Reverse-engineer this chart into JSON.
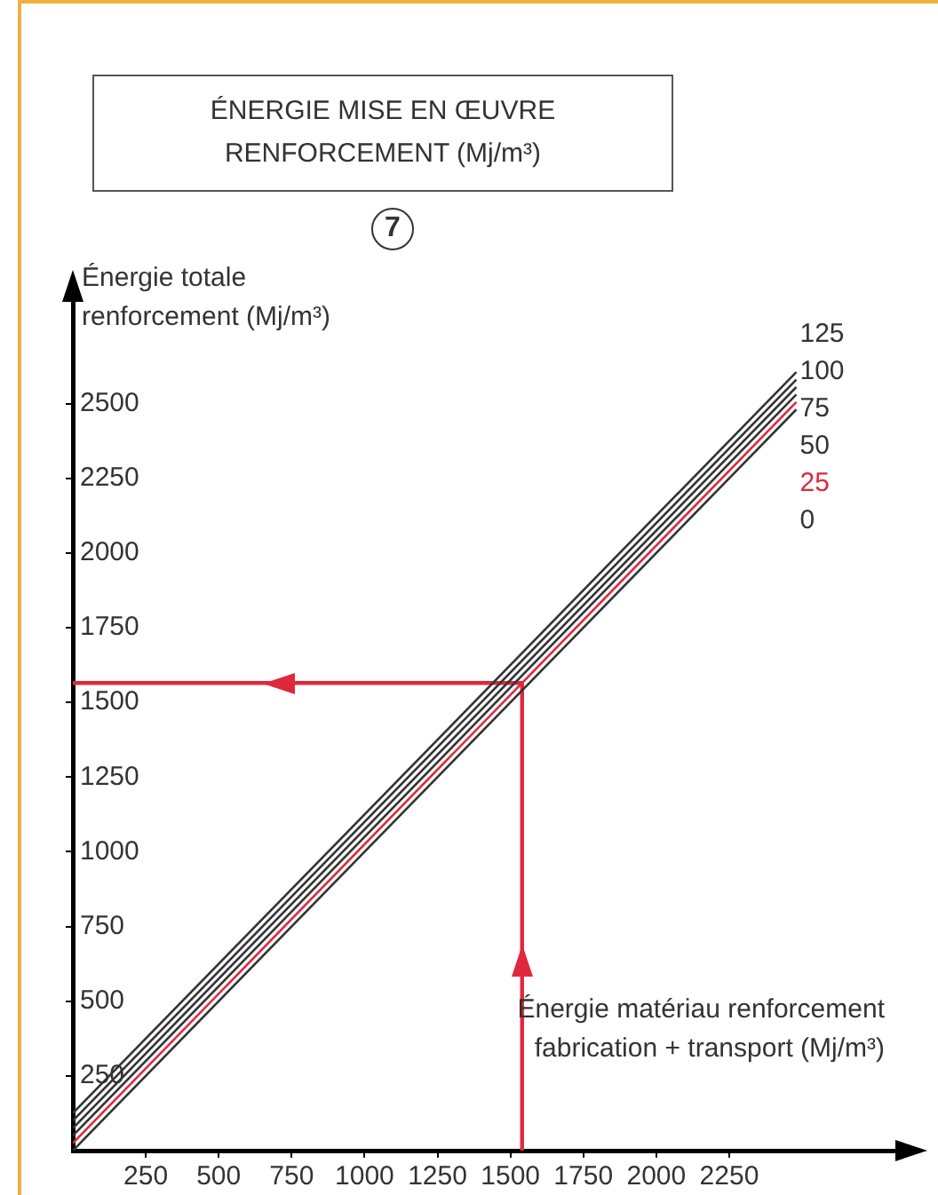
{
  "chart_data": {
    "type": "line",
    "title": "ÉNERGIE MISE EN ŒUVRE\nRENFORCEMENT (Mj/m³)",
    "annotations": [
      "7"
    ],
    "xlabel": "Énergie matériau renforcement\nfabrication + transport (Mj/m³)",
    "ylabel": "Énergie totale\nrenforcement (Mj/m³)",
    "xlim": [
      0,
      2850
    ],
    "ylim": [
      0,
      2870
    ],
    "xticks": [
      250,
      500,
      750,
      1000,
      1250,
      1500,
      1750,
      2000,
      2250
    ],
    "yticks": [
      250,
      500,
      750,
      1000,
      1250,
      1500,
      1750,
      2000,
      2250,
      2500
    ],
    "marker": "none",
    "legend": false,
    "grid": false,
    "series": [
      {
        "name": "125",
        "color": "#333333",
        "x": [
          0,
          2480
        ],
        "values": [
          125,
          2605
        ]
      },
      {
        "name": "100",
        "color": "#333333",
        "x": [
          0,
          2480
        ],
        "values": [
          100,
          2580
        ]
      },
      {
        "name": "75",
        "color": "#333333",
        "x": [
          0,
          2480
        ],
        "values": [
          75,
          2555
        ]
      },
      {
        "name": "50",
        "color": "#333333",
        "x": [
          0,
          2480
        ],
        "values": [
          50,
          2530
        ]
      },
      {
        "name": "25",
        "color": "#e0283c",
        "x": [
          0,
          2480
        ],
        "values": [
          25,
          2505
        ]
      },
      {
        "name": "0",
        "color": "#333333",
        "x": [
          0,
          2480
        ],
        "values": [
          0,
          2480
        ]
      },
      {
        "color": "#e0283c",
        "x": [
          1540,
          1540,
          0
        ],
        "values": [
          0,
          1565,
          1565
        ]
      }
    ]
  }
}
